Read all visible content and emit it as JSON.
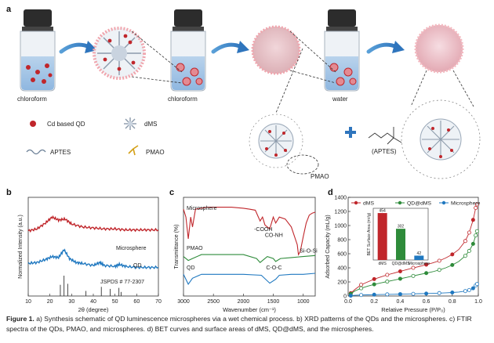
{
  "panel_a": {
    "letter": "a",
    "labels": {
      "chloroform_1": "chloroform",
      "chloroform_2": "chloroform",
      "water": "water",
      "pmao_callout": "PMAO",
      "aptes_callout": "(APTES)",
      "plus": "+"
    },
    "legend": [
      {
        "icon": "qd-dot-icon",
        "label": "Cd based QD"
      },
      {
        "icon": "dms-sphere-icon",
        "label": "dMS"
      },
      {
        "icon": "aptes-wave-icon",
        "label": "APTES"
      },
      {
        "icon": "pmao-branch-icon",
        "label": "PMAO"
      }
    ]
  },
  "panel_b": {
    "letter": "b",
    "labels": {
      "microsphere": "Microsphere",
      "qd": "QD",
      "jcpds": "JSPDS # 77-2307"
    },
    "colors": {
      "microsphere": "#c0262b",
      "qd": "#1f78c0"
    }
  },
  "panel_c": {
    "letter": "c",
    "labels": {
      "microsphere": "Microsphere",
      "pmao": "PMAO",
      "qd": "QD",
      "cooh": "-COOH",
      "conh": "CO-NH",
      "coc": "C-O-C",
      "siosi": "Si-O-Si"
    }
  },
  "panel_d": {
    "letter": "d",
    "inset_ylabel": "BET Surface Area (m²/g)"
  },
  "chart_data": [
    {
      "type": "line",
      "panel": "b",
      "xlabel": "2θ (degree)",
      "ylabel": "Normalized Intensity (a.u.)",
      "xlim": [
        10,
        70
      ],
      "xticks": [
        10,
        20,
        30,
        40,
        50,
        60,
        70
      ],
      "series": [
        {
          "name": "Microsphere",
          "x": [
            10,
            14,
            18,
            21,
            24,
            27,
            30,
            35,
            40,
            45,
            50,
            55,
            60,
            65,
            70
          ],
          "y": [
            0.66,
            0.68,
            0.74,
            0.8,
            0.77,
            0.78,
            0.73,
            0.7,
            0.69,
            0.68,
            0.68,
            0.67,
            0.67,
            0.67,
            0.67
          ]
        },
        {
          "name": "QD",
          "x": [
            10,
            14,
            18,
            21,
            24,
            26.5,
            29,
            32,
            35,
            40,
            43,
            45,
            50,
            52,
            55,
            60,
            65,
            70
          ],
          "y": [
            0.33,
            0.34,
            0.37,
            0.4,
            0.39,
            0.47,
            0.38,
            0.34,
            0.33,
            0.31,
            0.34,
            0.31,
            0.3,
            0.32,
            0.3,
            0.29,
            0.29,
            0.29
          ]
        }
      ],
      "reference_sticks": {
        "name": "JSPDS # 77-2307",
        "x": [
          24.8,
          26.5,
          28.2,
          36.6,
          43.7,
          47.8,
          51.8,
          52.8
        ],
        "h": [
          0.55,
          1.0,
          0.6,
          0.25,
          0.45,
          0.35,
          0.4,
          0.2
        ]
      }
    },
    {
      "type": "line",
      "panel": "c",
      "xlabel": "Wavenumber (cm⁻¹)",
      "ylabel": "Transmittance (%)",
      "xlim": [
        3000,
        800
      ],
      "xticks": [
        3000,
        2500,
        2000,
        1500,
        1000
      ],
      "series": [
        {
          "name": "Microsphere",
          "x": [
            3000,
            2960,
            2920,
            2880,
            2850,
            2800,
            2600,
            2400,
            2200,
            2000,
            1900,
            1800,
            1720,
            1680,
            1640,
            1560,
            1500,
            1460,
            1400,
            1300,
            1200,
            1100,
            1080,
            1050,
            1000,
            950,
            900,
            850,
            800
          ],
          "y": [
            0.88,
            0.8,
            0.58,
            0.8,
            0.7,
            0.88,
            0.9,
            0.9,
            0.9,
            0.89,
            0.88,
            0.87,
            0.76,
            0.8,
            0.72,
            0.68,
            0.8,
            0.74,
            0.8,
            0.78,
            0.7,
            0.52,
            0.42,
            0.45,
            0.6,
            0.74,
            0.82,
            0.84,
            0.85
          ]
        },
        {
          "name": "PMAO",
          "x": [
            3000,
            2920,
            2850,
            2700,
            2400,
            2000,
            1780,
            1720,
            1600,
            1500,
            1460,
            1380,
            1200,
            1000,
            800
          ],
          "y": [
            0.4,
            0.36,
            0.38,
            0.42,
            0.42,
            0.42,
            0.38,
            0.34,
            0.4,
            0.38,
            0.35,
            0.38,
            0.39,
            0.4,
            0.41
          ]
        },
        {
          "name": "QD",
          "x": [
            3000,
            2920,
            2850,
            2700,
            2400,
            2000,
            1700,
            1560,
            1460,
            1400,
            1200,
            1000,
            800
          ],
          "y": [
            0.22,
            0.12,
            0.18,
            0.22,
            0.22,
            0.22,
            0.21,
            0.13,
            0.17,
            0.21,
            0.22,
            0.22,
            0.23
          ]
        }
      ]
    },
    {
      "type": "scatter",
      "panel": "d",
      "xlabel": "Relative Pressure (P/P₀)",
      "ylabel": "Adsorbed Capacity (mL/g)",
      "xlim": [
        0.0,
        1.0
      ],
      "ylim": [
        0,
        1400
      ],
      "xticks": [
        0.0,
        0.2,
        0.4,
        0.6,
        0.8,
        1.0
      ],
      "yticks": [
        0,
        200,
        400,
        600,
        800,
        1000,
        1200,
        1400
      ],
      "legend_position": "top",
      "series": [
        {
          "name": "dMS",
          "color": "#c0262b",
          "x": [
            0.02,
            0.05,
            0.1,
            0.15,
            0.2,
            0.25,
            0.3,
            0.35,
            0.4,
            0.45,
            0.5,
            0.55,
            0.6,
            0.65,
            0.7,
            0.75,
            0.8,
            0.85,
            0.9,
            0.93,
            0.96,
            0.98,
            0.99
          ],
          "y": [
            40,
            90,
            160,
            200,
            240,
            270,
            300,
            325,
            350,
            375,
            400,
            420,
            445,
            470,
            500,
            540,
            590,
            660,
            780,
            900,
            1080,
            1250,
            1300
          ]
        },
        {
          "name": "QD@dMS",
          "color": "#2e8b3a",
          "x": [
            0.02,
            0.05,
            0.1,
            0.15,
            0.2,
            0.25,
            0.3,
            0.35,
            0.4,
            0.45,
            0.5,
            0.55,
            0.6,
            0.65,
            0.7,
            0.75,
            0.8,
            0.85,
            0.9,
            0.93,
            0.96,
            0.98,
            0.99
          ],
          "y": [
            30,
            70,
            110,
            140,
            165,
            185,
            205,
            225,
            245,
            265,
            285,
            305,
            325,
            345,
            370,
            400,
            440,
            490,
            570,
            640,
            740,
            860,
            920
          ]
        },
        {
          "name": "Microsphere",
          "color": "#1f78c0",
          "x": [
            0.02,
            0.05,
            0.1,
            0.15,
            0.2,
            0.25,
            0.3,
            0.35,
            0.4,
            0.45,
            0.5,
            0.55,
            0.6,
            0.65,
            0.7,
            0.75,
            0.8,
            0.85,
            0.9,
            0.93,
            0.96,
            0.98,
            0.99
          ],
          "y": [
            5,
            10,
            14,
            17,
            19,
            21,
            23,
            25,
            27,
            29,
            31,
            33,
            35,
            38,
            41,
            45,
            50,
            57,
            70,
            85,
            110,
            150,
            170
          ]
        }
      ],
      "inset": {
        "type": "bar",
        "categories": [
          "dMS",
          "QD@dMS",
          "Microsphere"
        ],
        "values": [
          454,
          302,
          42
        ],
        "value_labels": [
          "454",
          "302",
          "42"
        ],
        "colors": [
          "#c0262b",
          "#2e8b3a",
          "#1f78c0"
        ],
        "ylim": [
          0,
          500
        ]
      }
    }
  ],
  "caption": {
    "label": "Figure 1.",
    "text": " a) Synthesis schematic of QD luminescence microspheres via a wet chemical process. b) XRD patterns of the QDs and the microspheres. c) FTIR spectra of the QDs, PMAO, and microspheres. d) BET curves and surface areas of dMS, QD@dMS, and the microspheres."
  }
}
